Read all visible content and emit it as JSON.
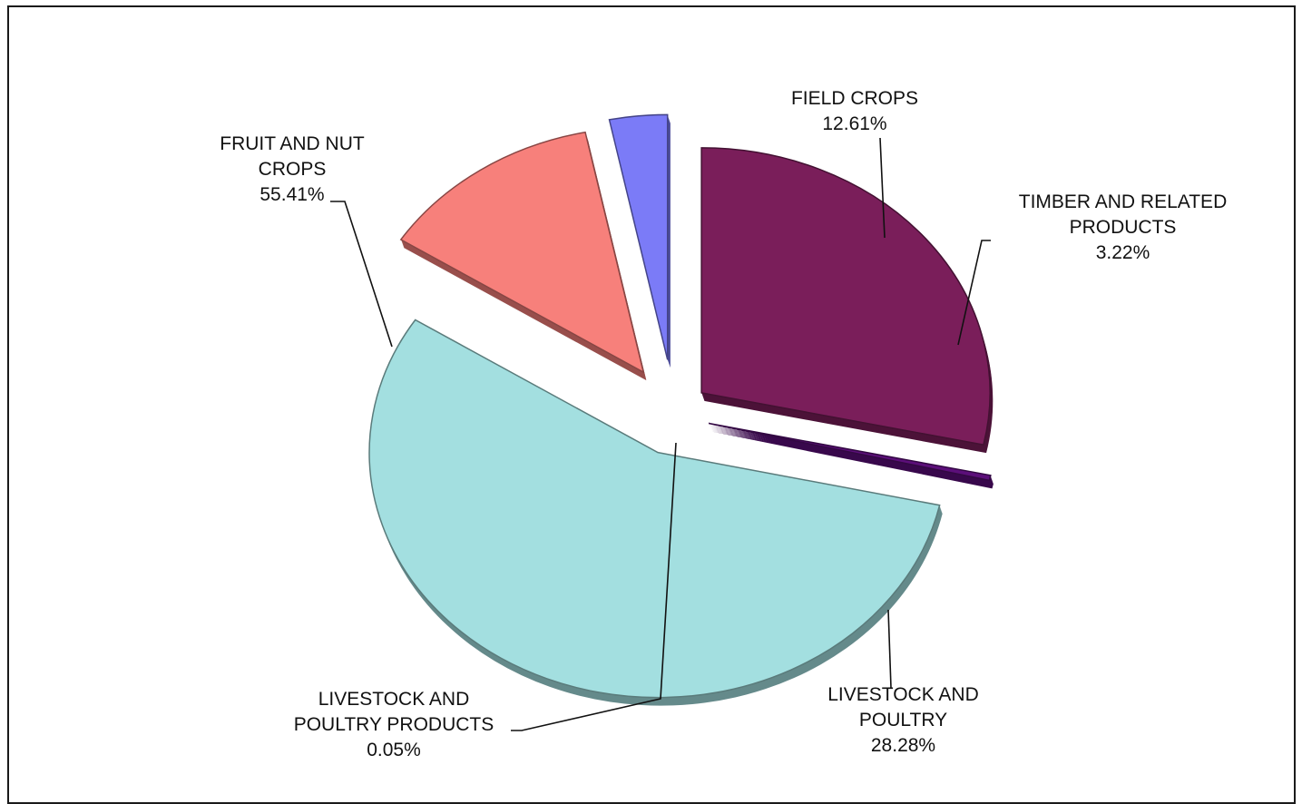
{
  "chart_data": {
    "type": "pie",
    "exploded": true,
    "style": "3d",
    "legend": "none",
    "slices": [
      {
        "name_lines": [
          "LIVESTOCK AND",
          "POULTRY"
        ],
        "value": 28.28,
        "label": "28.28%",
        "color": "#7a1e5a"
      },
      {
        "name_lines": [
          "LIVESTOCK AND",
          "POULTRY PRODUCTS"
        ],
        "value": 0.05,
        "label": "0.05%",
        "color": "#5c0f7a"
      },
      {
        "name_lines": [
          "FRUIT AND NUT",
          "CROPS"
        ],
        "value": 55.41,
        "label": "55.41%",
        "color": "#a3dfe0"
      },
      {
        "name_lines": [
          "FIELD CROPS"
        ],
        "value": 12.61,
        "label": "12.61%",
        "color": "#f7807b"
      },
      {
        "name_lines": [
          "TIMBER AND RELATED",
          "PRODUCTS"
        ],
        "value": 3.22,
        "label": "3.22%",
        "color": "#7b7bf7"
      }
    ]
  }
}
